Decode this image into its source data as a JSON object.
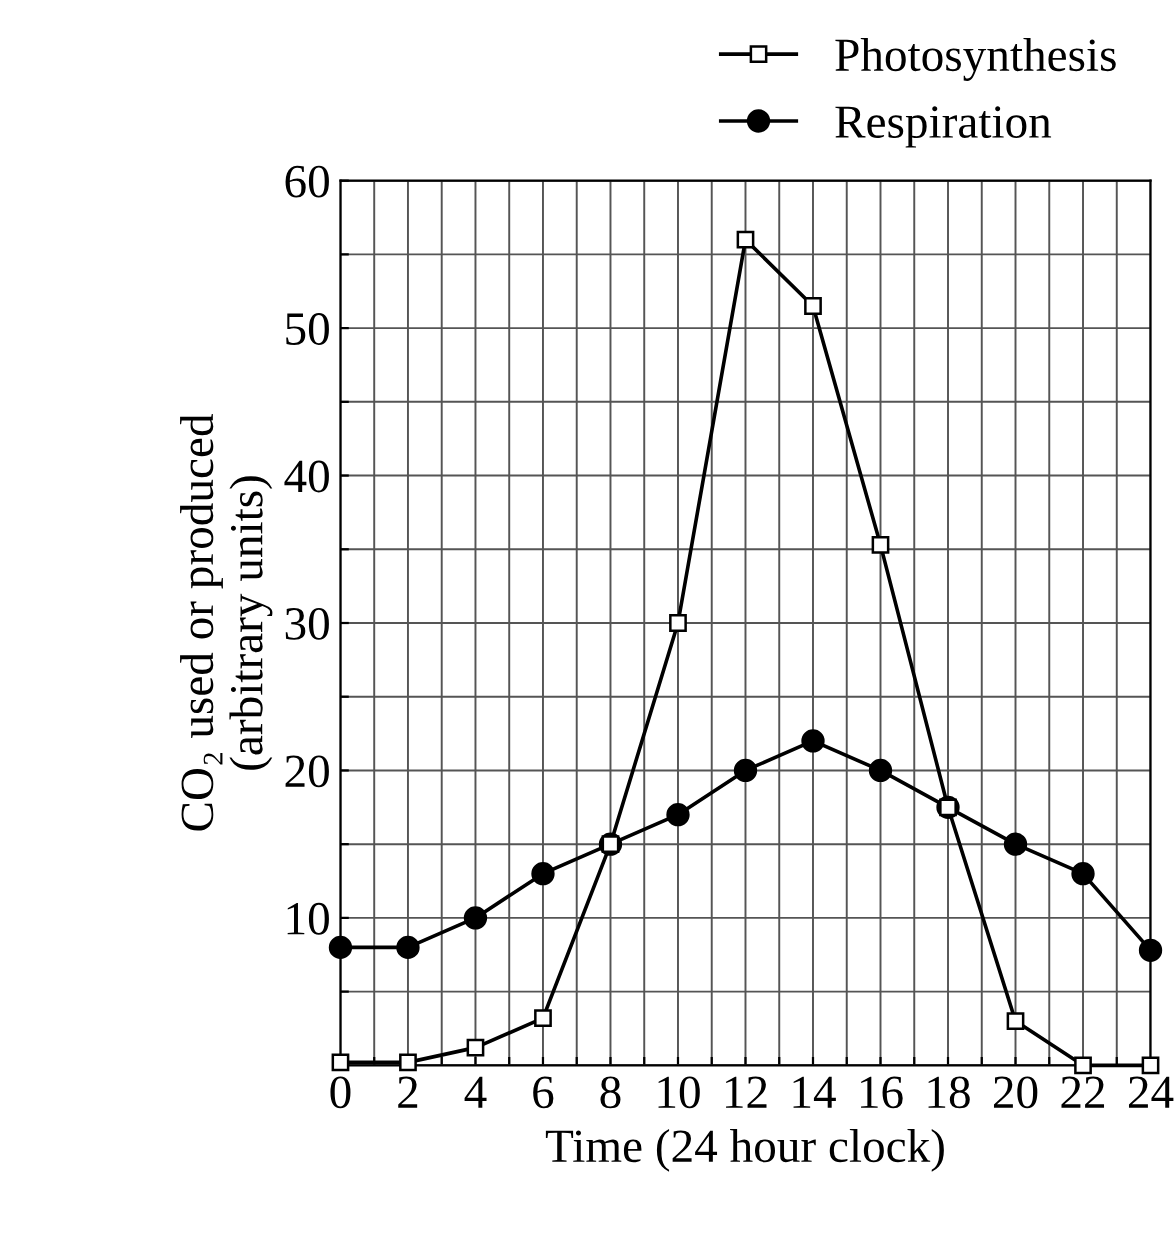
{
  "chart_data": {
    "type": "line",
    "xlabel": "Time (24 hour clock)",
    "ylabel": "CO₂ used or produced\n(arbitrary units)",
    "x": [
      0,
      2,
      4,
      6,
      8,
      10,
      12,
      14,
      16,
      18,
      20,
      22,
      24
    ],
    "series": [
      {
        "name": "Photosynthesis",
        "color": "#000000",
        "marker": "square",
        "values": [
          0.2,
          0.2,
          1.2,
          3.2,
          15,
          30,
          56,
          51.5,
          35.3,
          17.5,
          3,
          0,
          0
        ]
      },
      {
        "name": "Respiration",
        "color": "#000000",
        "marker": "circle",
        "values": [
          8,
          8,
          10,
          13,
          15,
          17,
          20,
          22,
          20,
          17.5,
          15,
          13,
          7.8
        ]
      }
    ],
    "xlim": [
      0,
      24
    ],
    "ylim": [
      0,
      60
    ],
    "xticks": [
      0,
      {
        "value": 1,
        "label": null
      },
      2,
      {
        "value": 3,
        "label": null
      },
      4,
      {
        "value": 5,
        "label": null
      },
      6,
      {
        "value": 7,
        "label": null
      },
      8,
      {
        "value": 9,
        "label": null
      },
      10,
      {
        "value": 11,
        "label": null
      },
      12,
      {
        "value": 13,
        "label": null
      },
      14,
      {
        "value": 15,
        "label": null
      },
      16,
      {
        "value": 17,
        "label": null
      },
      18,
      {
        "value": 19,
        "label": null
      },
      20,
      {
        "value": 21,
        "label": null
      },
      22,
      {
        "value": 23,
        "label": null
      },
      24
    ],
    "yticks": [
      {
        "value": 0,
        "label": null
      },
      {
        "value": 5,
        "label": null
      },
      10,
      {
        "value": 15,
        "label": null
      },
      20,
      {
        "value": 25,
        "label": null
      },
      30,
      {
        "value": 35,
        "label": null
      },
      40,
      {
        "value": 45,
        "label": null
      },
      50,
      {
        "value": 55,
        "label": null
      },
      60
    ],
    "grid": true,
    "legend": "top right",
    "line_style": "solid"
  }
}
